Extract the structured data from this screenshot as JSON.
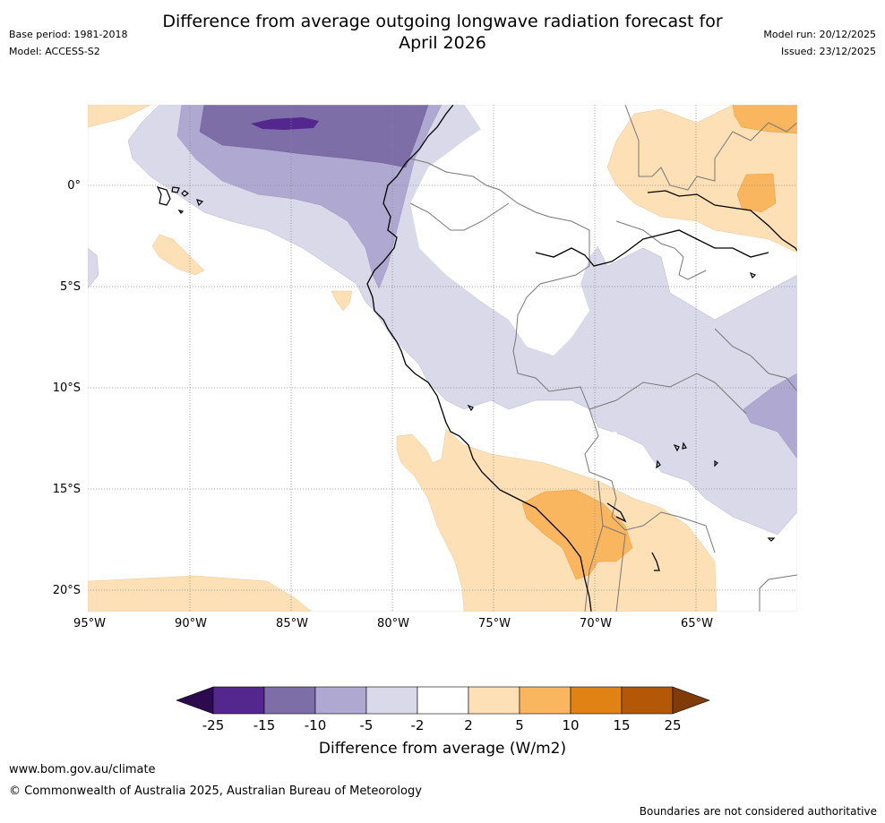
{
  "header": {
    "title_line1": "Difference from average outgoing longwave radiation forecast for",
    "title_line2": "April 2026",
    "base_period": "Base period: 1981-2018",
    "model": "Model: ACCESS-S2",
    "model_run": "Model run: 20/12/2025",
    "issued": "Issued: 23/12/2025"
  },
  "map": {
    "lat_labels": [
      "0°",
      "5°S",
      "10°S",
      "15°S",
      "20°S"
    ],
    "lon_labels": [
      "95°W",
      "90°W",
      "85°W",
      "80°W",
      "75°W",
      "70°W",
      "65°W"
    ]
  },
  "colorbar": {
    "ticks": [
      "-25",
      "-15",
      "-10",
      "-5",
      "-2",
      "2",
      "5",
      "10",
      "15",
      "25"
    ],
    "colors": [
      "#2d0a4e",
      "#54278f",
      "#7d6ea8",
      "#afa8d0",
      "#d9d9ea",
      "#ffffff",
      "#fde0b5",
      "#f9b65f",
      "#e08214",
      "#b35806",
      "#7f3b08"
    ],
    "label": "Difference from average (W/m2)"
  },
  "footer": {
    "url": "www.bom.gov.au/climate",
    "copyright": "© Commonwealth of Australia 2025, Australian Bureau of Meteorology",
    "disclaimer": "Boundaries are not considered authoritative"
  }
}
